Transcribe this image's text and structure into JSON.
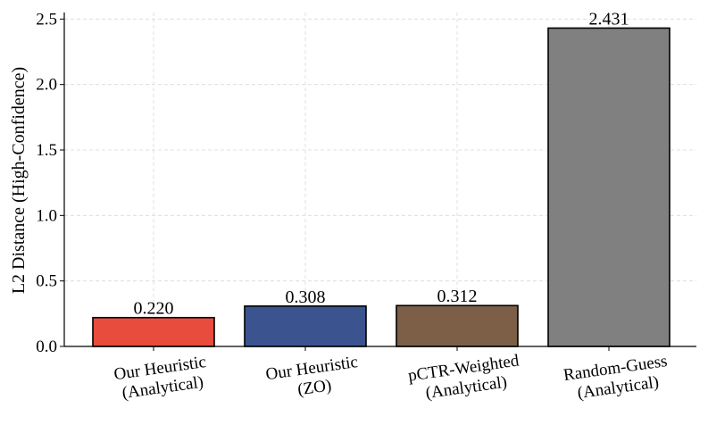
{
  "chart_data": {
    "type": "bar",
    "title": "",
    "xlabel": "",
    "ylabel": "L2 Distance (High-Confidence)",
    "ylim": [
      0,
      2.55
    ],
    "yticks": [
      0.0,
      0.5,
      1.0,
      1.5,
      2.0,
      2.5
    ],
    "ytick_labels": [
      "0.0",
      "0.5",
      "1.0",
      "1.5",
      "2.0",
      "2.5"
    ],
    "grid": true,
    "categories": [
      [
        "Our Heuristic",
        "(Analytical)"
      ],
      [
        "Our Heuristic",
        "(ZO)"
      ],
      [
        "pCTR-Weighted",
        "(Analytical)"
      ],
      [
        "Random-Guess",
        "(Analytical)"
      ]
    ],
    "values": [
      0.22,
      0.308,
      0.312,
      2.431
    ],
    "value_labels": [
      "0.220",
      "0.308",
      "0.312",
      "2.431"
    ],
    "colors": [
      "#e74c3c",
      "#3b5490",
      "#7d5f48",
      "#808080"
    ]
  }
}
